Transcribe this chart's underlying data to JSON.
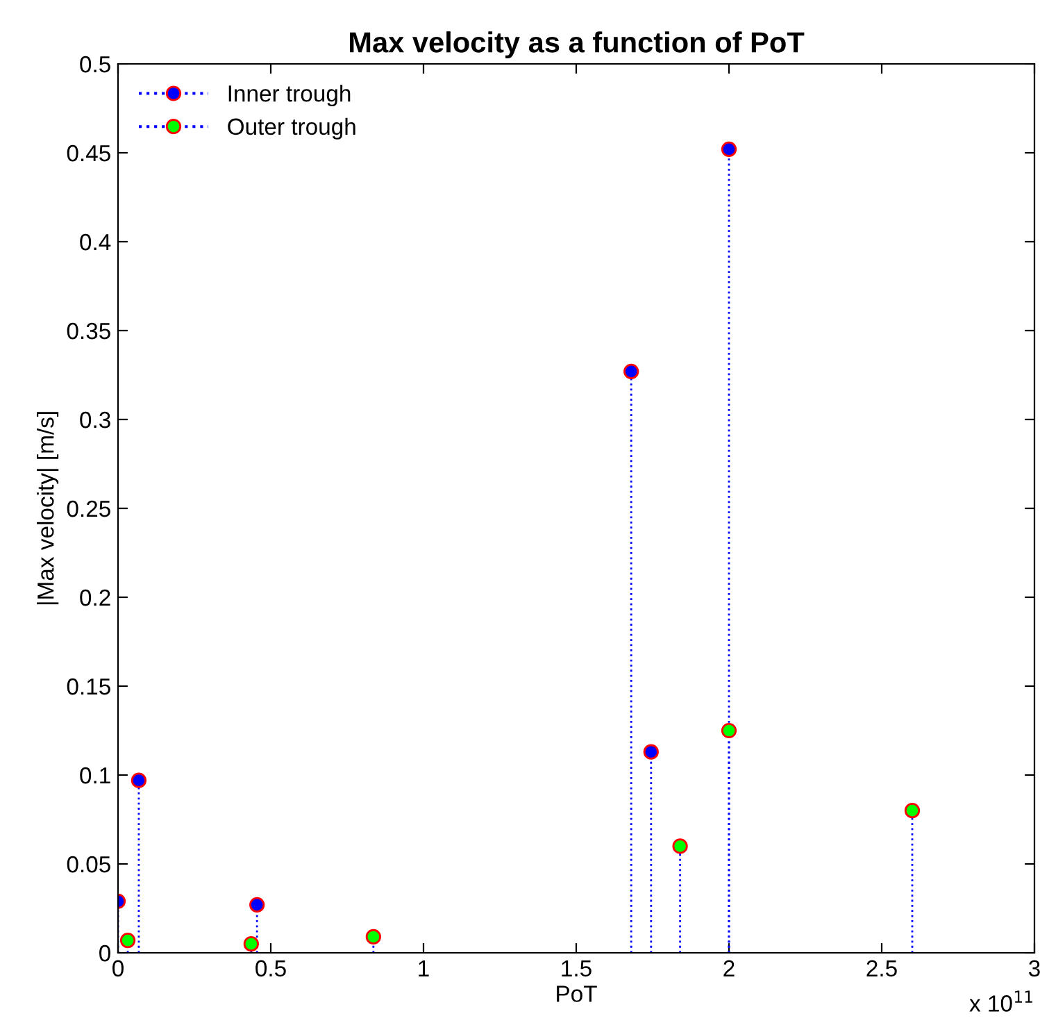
{
  "chart_data": {
    "type": "lollipop",
    "title": "Max velocity as a function of PoT",
    "xlabel": "PoT",
    "ylabel": "|Max velocity| [m/s]",
    "series": [
      {
        "name": "Inner trough",
        "color": "#0000ff",
        "x": [
          0.0,
          0.068,
          0.455,
          1.68,
          1.745,
          2.0
        ],
        "values": [
          0.029,
          0.097,
          0.027,
          0.327,
          0.113,
          0.452
        ]
      },
      {
        "name": "Outer trough",
        "color": "#00ff00",
        "x": [
          0.032,
          0.436,
          0.836,
          1.84,
          2.0,
          2.6
        ],
        "values": [
          0.007,
          0.005,
          0.009,
          0.06,
          0.125,
          0.08
        ]
      }
    ],
    "xlim": [
      0,
      3
    ],
    "xticks": [
      0,
      0.5,
      1,
      1.5,
      2,
      2.5,
      3
    ],
    "ylim": [
      0,
      0.5
    ],
    "yticks": [
      0,
      0.05,
      0.1,
      0.15,
      0.2,
      0.25,
      0.3,
      0.35,
      0.4,
      0.45,
      0.5
    ],
    "annotations": [
      "x 10$^{11}$"
    ],
    "marker": "circle",
    "line_style": "dotted",
    "legend": "top left"
  }
}
